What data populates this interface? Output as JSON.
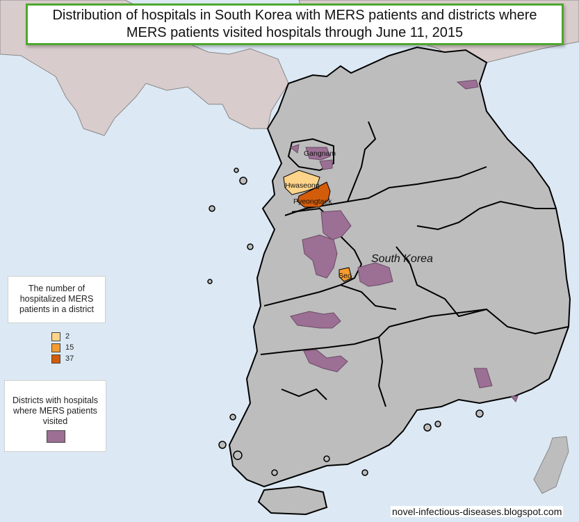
{
  "title": "Distribution of hospitals in South Korea with MERS patients and districts where MERS patients visited hospitals through June 11, 2015",
  "map": {
    "country_label": "South Korea",
    "district_labels": [
      "Gangnam",
      "Hwaseong",
      "Pyeongtaek",
      "Seo"
    ],
    "colors": {
      "sea": "#dce9f4",
      "south_korea": "#bdbdbd",
      "neighbor_land": "#d9cccc",
      "visited_district": "#9c6f94",
      "patients_2": "#fed38a",
      "patients_15": "#f59b2f",
      "patients_37": "#d35c0b"
    }
  },
  "legend_patients": {
    "title": "The number of hospitalized MERS patients in a district",
    "items": [
      {
        "label": "2",
        "color": "#fed38a"
      },
      {
        "label": "15",
        "color": "#f59b2f"
      },
      {
        "label": "37",
        "color": "#d35c0b"
      }
    ]
  },
  "legend_visited": {
    "title": "Districts with hospitals where MERS patients visited",
    "color": "#9c6f94"
  },
  "credit": "novel-infectious-diseases.blogspot.com"
}
